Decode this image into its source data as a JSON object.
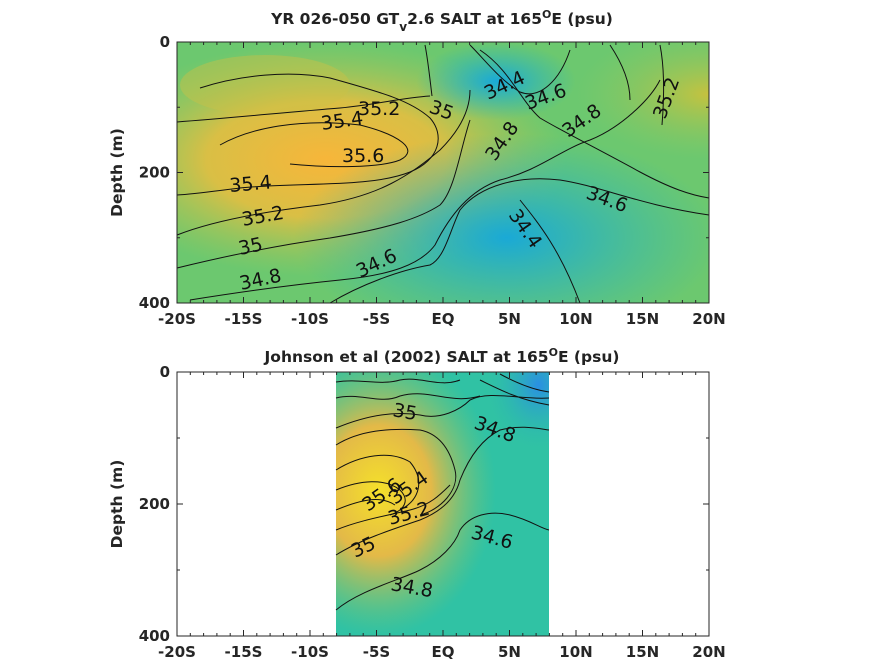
{
  "chart_data": [
    {
      "type": "heatmap",
      "title": {
        "main": "YR 026-050 GT",
        "sub": "v",
        "mid": "2.6 SALT at 165",
        "sup": "O",
        "end": "E (psu)"
      },
      "ylabel": "Depth (m)",
      "xlim": [
        -20,
        20
      ],
      "ylim": [
        0,
        400
      ],
      "y_reversed": true,
      "x_ticks": [
        -20,
        -15,
        -10,
        -5,
        0,
        5,
        10,
        15,
        20
      ],
      "x_tick_labels": [
        "-20S",
        "-15S",
        "-10S",
        "-5S",
        "EQ",
        "5N",
        "10N",
        "15N",
        "20N"
      ],
      "y_tick_labels": [
        "0",
        "200",
        "400"
      ],
      "contour_labels": [
        "34.4",
        "34.6",
        "35",
        "35.2",
        "35.2",
        "35.4",
        "35.6",
        "34.8",
        "34.8",
        "35.4",
        "35.2",
        "34.6",
        "35",
        "34.8",
        "34.6",
        "34.4"
      ],
      "data_x_extent": [
        -20,
        20
      ]
    },
    {
      "type": "heatmap",
      "title": {
        "main": "Johnson et al (2002) SALT at 165",
        "sup": "O",
        "end": "E (psu)"
      },
      "ylabel": "Depth (m)",
      "xlim": [
        -20,
        20
      ],
      "ylim": [
        0,
        400
      ],
      "y_reversed": true,
      "x_ticks": [
        -20,
        -15,
        -10,
        -5,
        0,
        5,
        10,
        15,
        20
      ],
      "x_tick_labels": [
        "-20S",
        "-15S",
        "-10S",
        "-5S",
        "EQ",
        "5N",
        "10N",
        "15N",
        "20N"
      ],
      "y_tick_labels": [
        "0",
        "200",
        "400"
      ],
      "contour_labels": [
        "35",
        "34.8",
        "35.6",
        "35.4",
        "35.2",
        "34.6",
        "35",
        "34.8"
      ],
      "data_x_extent": [
        -8,
        8
      ]
    }
  ]
}
